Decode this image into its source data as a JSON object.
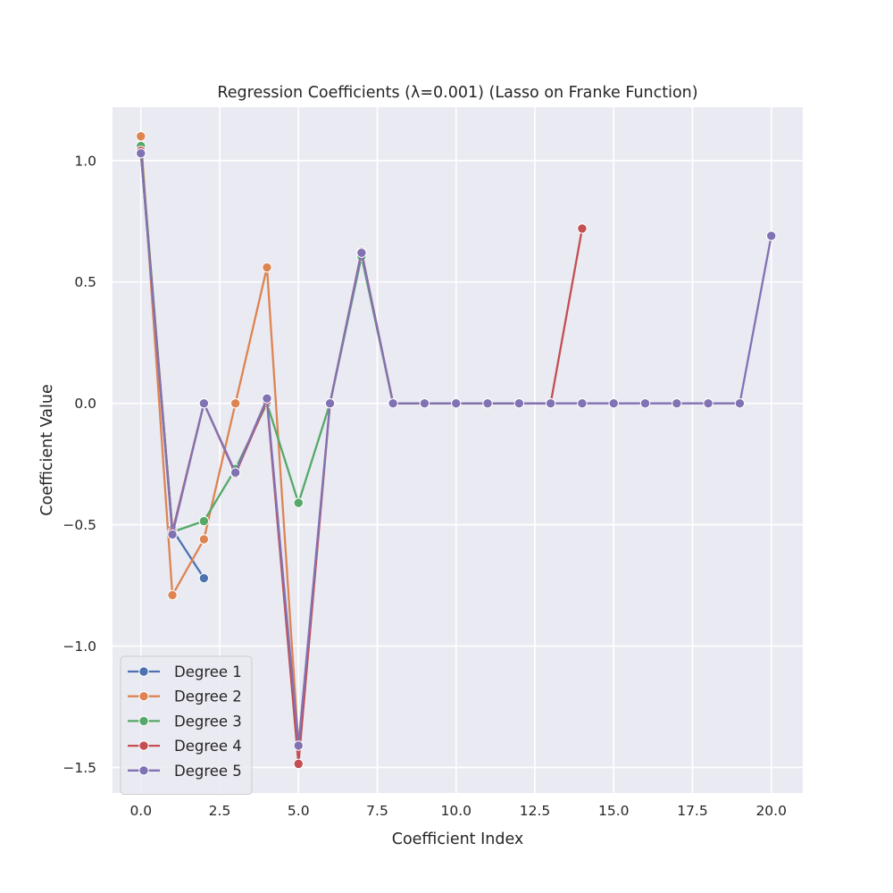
{
  "chart_data": {
    "type": "line",
    "title": "Regression Coefficients (λ=0.001) (Lasso on Franke Function)",
    "xlabel": "Coefficient Index",
    "ylabel": "Coefficient Value",
    "xlim": [
      -0.9,
      21.0
    ],
    "ylim": [
      -1.605,
      1.22
    ],
    "xticks": [
      0.0,
      2.5,
      5.0,
      7.5,
      10.0,
      12.5,
      15.0,
      17.5,
      20.0
    ],
    "xtick_labels": [
      "0.0",
      "2.5",
      "5.0",
      "7.5",
      "10.0",
      "12.5",
      "15.0",
      "17.5",
      "20.0"
    ],
    "yticks": [
      1.0,
      0.5,
      0.0,
      -0.5,
      -1.0,
      -1.5
    ],
    "ytick_labels": [
      "1.0",
      "0.5",
      "0.0",
      "−0.5",
      "−1.0",
      "−1.5"
    ],
    "grid": true,
    "legend_position": "lower-left",
    "background": "#eaeaf2",
    "series": [
      {
        "name": "Degree 1",
        "color": "#4c72b0",
        "x": [
          0,
          1,
          2
        ],
        "y": [
          1.03,
          -0.52,
          -0.72
        ]
      },
      {
        "name": "Degree 2",
        "color": "#dd8452",
        "x": [
          0,
          1,
          2,
          3,
          4,
          5
        ],
        "y": [
          1.1,
          -0.79,
          -0.56,
          0.0,
          0.56,
          -1.41
        ]
      },
      {
        "name": "Degree 3",
        "color": "#55a868",
        "x": [
          0,
          1,
          2,
          3,
          4,
          5,
          6,
          7,
          8,
          9
        ],
        "y": [
          1.06,
          -0.53,
          -0.485,
          -0.27,
          0.0,
          -0.41,
          0.0,
          0.605,
          0.0,
          0.0
        ]
      },
      {
        "name": "Degree 4",
        "color": "#c44e52",
        "x": [
          0,
          1,
          2,
          3,
          4,
          5,
          6,
          7,
          8,
          9,
          10,
          11,
          12,
          13,
          14
        ],
        "y": [
          1.04,
          -0.53,
          0.0,
          -0.29,
          0.01,
          -1.485,
          0.0,
          0.625,
          0.0,
          0.0,
          0.0,
          0.0,
          0.0,
          0.0,
          0.72
        ]
      },
      {
        "name": "Degree 5",
        "color": "#8172b3",
        "x": [
          0,
          1,
          2,
          3,
          4,
          5,
          6,
          7,
          8,
          9,
          10,
          11,
          12,
          13,
          14,
          15,
          16,
          17,
          18,
          19,
          20
        ],
        "y": [
          1.03,
          -0.54,
          0.0,
          -0.285,
          0.02,
          -1.41,
          0.0,
          0.62,
          0.0,
          0.0,
          0.0,
          0.0,
          0.0,
          0.0,
          0.0,
          0.0,
          0.0,
          0.0,
          0.0,
          0.0,
          0.69
        ]
      }
    ]
  }
}
